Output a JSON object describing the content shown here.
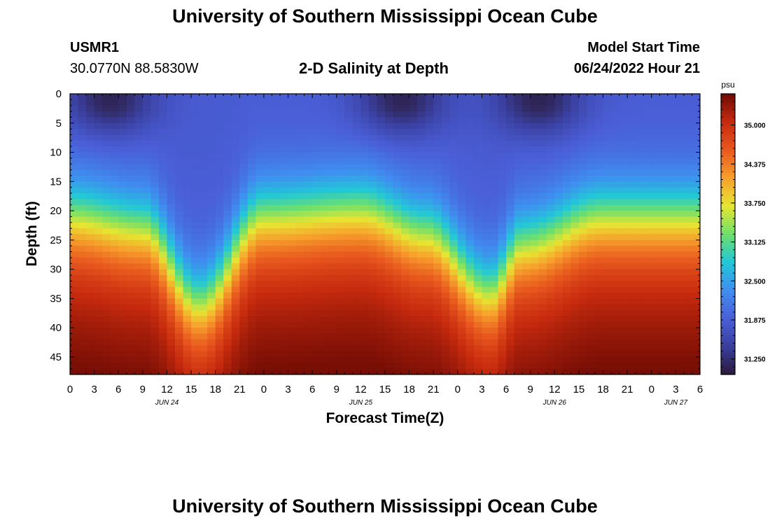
{
  "page": {
    "title": "University of Southern Mississippi Ocean Cube",
    "footer_title": "University of Southern Mississippi Ocean Cube",
    "station_id": "USMR1",
    "station_coords": "30.0770N  88.5830W",
    "model_start_label": "Model Start Time",
    "model_start_value": "06/24/2022 Hour 21"
  },
  "chart_data": {
    "type": "heatmap",
    "title": "2-D Salinity at Depth",
    "xlabel": "Forecast Time(Z)",
    "ylabel": "Depth (ft)",
    "x_tick_labels": [
      "0",
      "3",
      "6",
      "9",
      "12",
      "15",
      "18",
      "21",
      "0",
      "3",
      "6",
      "9",
      "12",
      "15",
      "18",
      "21",
      "0",
      "3",
      "6",
      "9",
      "12",
      "15",
      "18",
      "21",
      "0",
      "3",
      "6"
    ],
    "x_hours_range": [
      0,
      78
    ],
    "date_labels": [
      {
        "text": "JUN 24",
        "hour": 12
      },
      {
        "text": "JUN 25",
        "hour": 36
      },
      {
        "text": "JUN 26",
        "hour": 60
      },
      {
        "text": "JUN 27",
        "hour": 75
      }
    ],
    "y_tick_labels": [
      "0",
      "5",
      "10",
      "15",
      "20",
      "25",
      "30",
      "35",
      "40",
      "45"
    ],
    "ylim": [
      0,
      48
    ],
    "y_inverted": true,
    "colorbar": {
      "unit": "psu",
      "range": [
        31.0,
        35.5
      ],
      "tick_labels": [
        "35.000",
        "34.375",
        "33.750",
        "33.125",
        "32.500",
        "31.875",
        "31.250"
      ],
      "colors": [
        "#2a1a3a",
        "#3a3f9e",
        "#4a5fd8",
        "#3f8ef0",
        "#22c8d8",
        "#6ee06a",
        "#e6e632",
        "#f7a02c",
        "#e8581e",
        "#c62a0e",
        "#6e0a04"
      ]
    },
    "field": {
      "time_step_hours": 1,
      "depth_step_ft": 1,
      "surface_fresh_min_psu": 31.05,
      "bottom_salty_max_psu": 35.45,
      "halocline_depth_ft_at_hour": [
        {
          "hour": 0,
          "depth": 21
        },
        {
          "hour": 9,
          "depth": 23
        },
        {
          "hour": 16,
          "depth": 36
        },
        {
          "hour": 24,
          "depth": 21
        },
        {
          "hour": 36,
          "depth": 20
        },
        {
          "hour": 44,
          "depth": 24
        },
        {
          "hour": 52,
          "depth": 34
        },
        {
          "hour": 56,
          "depth": 26
        },
        {
          "hour": 66,
          "depth": 21
        },
        {
          "hour": 78,
          "depth": 21
        }
      ],
      "fresh_patches": [
        {
          "hour": 5,
          "depth": 1
        },
        {
          "hour": 41,
          "depth": 1
        },
        {
          "hour": 58,
          "depth": 1
        }
      ]
    }
  }
}
